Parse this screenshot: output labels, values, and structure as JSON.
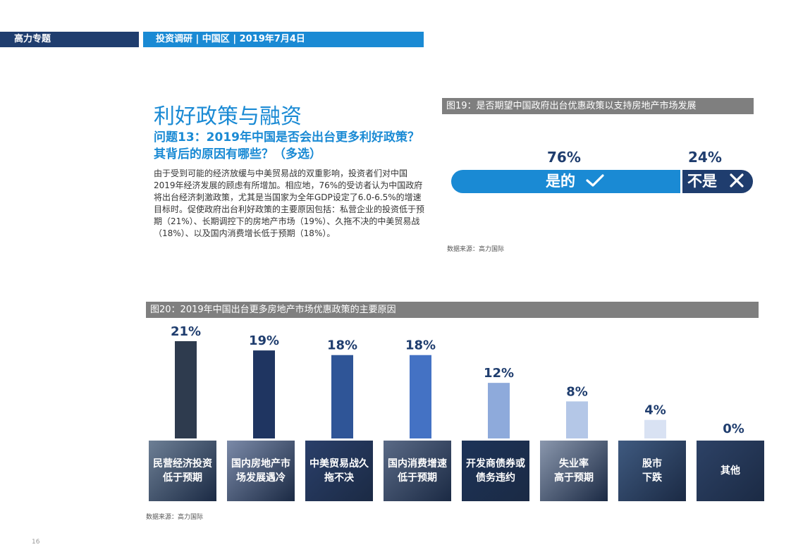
{
  "header": {
    "left": "高力专题",
    "right": "投资调研  |  中国区  |  2019年7月4日"
  },
  "section_title": "利好政策与融资",
  "question": "问题13：2019年中国是否会出台更多利好政策？其背后的原因有哪些？（多选）",
  "body": "由于受到可能的经济放缓与中美贸易战的双重影响，投资者们对中国2019年经济发展的顾虑有所增加。相应地，76%的受访者认为中国政府将出台经济刺激政策，尤其是当国家为全年GDP设定了6.0-6.5%的增速目标时。促使政府出台利好政策的主要原因包括：私营企业的投资低于预期（21%）、长期调控下的房地产市场（19%）、久拖不决的中美贸易战（18%）、以及国内消费增长低于预期（18%）。",
  "fig19": {
    "title": "图19：是否期望中国政府出台优惠政策以支持房地产市场发展",
    "yes_pct": "76%",
    "no_pct": "24%",
    "yes_label": "是的",
    "no_label": "不是",
    "yes_value": 76,
    "no_value": 24,
    "source": "数据来源：高力国际",
    "colors": {
      "yes": "#1a8ad4",
      "no": "#1f3d6e"
    }
  },
  "fig20": {
    "title": "图20：2019年中国出台更多房地产市场优惠政策的主要原因",
    "source": "数据来源：高力国际"
  },
  "chart_data": {
    "type": "bar",
    "categories": [
      "民营经济投资\n低于预期",
      "国内房地产市\n场发展遇冷",
      "中美贸易战久\n拖不决",
      "国内消费增速\n低于预期",
      "开发商债券或\n债务违约",
      "失业率\n高于预期",
      "股市\n下跌",
      "其他"
    ],
    "values": [
      21,
      19,
      18,
      18,
      12,
      8,
      4,
      0
    ],
    "value_labels": [
      "21%",
      "19%",
      "18%",
      "18%",
      "12%",
      "8%",
      "4%",
      "0%"
    ],
    "colors": [
      "#2e3b4e",
      "#1f3561",
      "#2f5597",
      "#4472c4",
      "#8eaadb",
      "#b4c7e7",
      "#d9e2f3",
      "#d9e2f3"
    ],
    "ylim": [
      0,
      21
    ],
    "grid": false
  },
  "tile_colors": [
    "#6d7f95",
    "#7b8aa8",
    "#2a3f6a",
    "#5a6a86",
    "#1c3358",
    "#8a97ad",
    "#3f5a80",
    "#2d4266"
  ],
  "page_number": "16"
}
